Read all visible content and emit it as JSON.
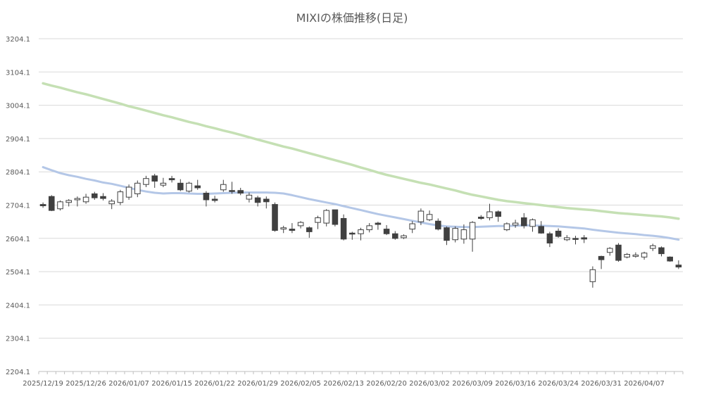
{
  "chart_data": {
    "type": "candlestick",
    "title": "MIXIの株価推移(日足)",
    "ylim": [
      2204.1,
      3204.1
    ],
    "y_ticks": [
      "3204.1",
      "3104.1",
      "3004.1",
      "2904.1",
      "2804.1",
      "2704.1",
      "2604.1",
      "2504.1",
      "2404.1",
      "2304.1",
      "2204.1"
    ],
    "x_tick_labels": [
      "2025/12/19",
      "2025/12/26",
      "2026/01/07",
      "2026/01/15",
      "2026/01/22",
      "2026/01/29",
      "2026/02/05",
      "2026/02/13",
      "2026/02/20",
      "2026/03/02",
      "2026/03/09",
      "2026/03/16",
      "2026/03/24",
      "2026/03/31",
      "2026/04/07"
    ],
    "grid": true,
    "colors": {
      "up_fill": "#ffffff",
      "down_fill": "#404040",
      "candle_stroke": "#404040",
      "ma_short": "#b4c7e7",
      "ma_long": "#c5e0b4",
      "grid": "#d9d9d9",
      "axis_text": "#595959"
    },
    "series": [
      {
        "values": [
          [
            2706,
            2712,
            2696,
            2702
          ],
          [
            2730,
            2734,
            2686,
            2688
          ],
          [
            2693,
            2718,
            2688,
            2714
          ],
          [
            2712,
            2722,
            2700,
            2718
          ],
          [
            2720,
            2730,
            2700,
            2724
          ],
          [
            2714,
            2738,
            2708,
            2728
          ],
          [
            2738,
            2744,
            2720,
            2726
          ],
          [
            2730,
            2740,
            2718,
            2724
          ],
          [
            2708,
            2722,
            2692,
            2716
          ],
          [
            2712,
            2750,
            2704,
            2744
          ],
          [
            2728,
            2766,
            2720,
            2758
          ],
          [
            2738,
            2778,
            2728,
            2770
          ],
          [
            2766,
            2792,
            2758,
            2784
          ],
          [
            2792,
            2798,
            2756,
            2776
          ],
          [
            2764,
            2786,
            2758,
            2770
          ],
          [
            2784,
            2792,
            2772,
            2780
          ],
          [
            2770,
            2782,
            2746,
            2750
          ],
          [
            2746,
            2774,
            2742,
            2770
          ],
          [
            2762,
            2780,
            2750,
            2756
          ],
          [
            2740,
            2746,
            2700,
            2720
          ],
          [
            2722,
            2732,
            2712,
            2718
          ],
          [
            2750,
            2780,
            2744,
            2766
          ],
          [
            2748,
            2774,
            2738,
            2746
          ],
          [
            2748,
            2756,
            2734,
            2740
          ],
          [
            2722,
            2742,
            2712,
            2734
          ],
          [
            2726,
            2732,
            2700,
            2712
          ],
          [
            2722,
            2730,
            2694,
            2714
          ],
          [
            2706,
            2712,
            2624,
            2628
          ],
          [
            2632,
            2642,
            2620,
            2636
          ],
          [
            2632,
            2650,
            2620,
            2628
          ],
          [
            2642,
            2656,
            2634,
            2652
          ],
          [
            2636,
            2640,
            2606,
            2624
          ],
          [
            2652,
            2672,
            2632,
            2666
          ],
          [
            2650,
            2692,
            2640,
            2688
          ],
          [
            2690,
            2690,
            2640,
            2646
          ],
          [
            2664,
            2676,
            2598,
            2602
          ],
          [
            2620,
            2624,
            2600,
            2618
          ],
          [
            2618,
            2636,
            2598,
            2630
          ],
          [
            2630,
            2650,
            2622,
            2642
          ],
          [
            2650,
            2654,
            2630,
            2646
          ],
          [
            2632,
            2644,
            2614,
            2618
          ],
          [
            2618,
            2626,
            2600,
            2604
          ],
          [
            2606,
            2616,
            2602,
            2612
          ],
          [
            2632,
            2656,
            2620,
            2648
          ],
          [
            2654,
            2694,
            2644,
            2686
          ],
          [
            2660,
            2688,
            2656,
            2676
          ],
          [
            2656,
            2664,
            2628,
            2632
          ],
          [
            2636,
            2640,
            2584,
            2598
          ],
          [
            2600,
            2640,
            2592,
            2634
          ],
          [
            2602,
            2646,
            2588,
            2630
          ],
          [
            2602,
            2656,
            2564,
            2652
          ],
          [
            2668,
            2674,
            2660,
            2664
          ],
          [
            2666,
            2708,
            2658,
            2684
          ],
          [
            2684,
            2688,
            2654,
            2670
          ],
          [
            2630,
            2652,
            2626,
            2648
          ],
          [
            2644,
            2660,
            2636,
            2650
          ],
          [
            2666,
            2680,
            2634,
            2642
          ],
          [
            2640,
            2664,
            2624,
            2660
          ],
          [
            2640,
            2656,
            2618,
            2620
          ],
          [
            2618,
            2624,
            2578,
            2590
          ],
          [
            2626,
            2634,
            2606,
            2610
          ],
          [
            2600,
            2614,
            2596,
            2606
          ],
          [
            2604,
            2612,
            2586,
            2602
          ],
          [
            2606,
            2614,
            2590,
            2602
          ],
          [
            2474,
            2520,
            2456,
            2510
          ],
          [
            2550,
            2552,
            2512,
            2540
          ],
          [
            2562,
            2578,
            2552,
            2574
          ],
          [
            2584,
            2590,
            2534,
            2538
          ],
          [
            2548,
            2560,
            2544,
            2556
          ],
          [
            2550,
            2562,
            2546,
            2554
          ],
          [
            2548,
            2564,
            2540,
            2560
          ],
          [
            2574,
            2588,
            2566,
            2582
          ],
          [
            2576,
            2580,
            2550,
            2558
          ],
          [
            2548,
            2550,
            2534,
            2536
          ],
          [
            2524,
            2538,
            2512,
            2518
          ]
        ]
      },
      {
        "name": "",
        "values": [
          2818,
          2809,
          2800,
          2794,
          2789,
          2783,
          2778,
          2772,
          2768,
          2762,
          2756,
          2750,
          2745,
          2741,
          2739,
          2740,
          2740,
          2739,
          2738,
          2738,
          2739,
          2740,
          2741,
          2742,
          2742,
          2742,
          2742,
          2741,
          2739,
          2734,
          2728,
          2722,
          2717,
          2712,
          2707,
          2701,
          2695,
          2689,
          2683,
          2677,
          2672,
          2667,
          2662,
          2657,
          2652,
          2647,
          2643,
          2640,
          2639,
          2638,
          2638,
          2639,
          2640,
          2641,
          2641,
          2642,
          2643,
          2643,
          2642,
          2641,
          2640,
          2638,
          2636,
          2634,
          2630,
          2627,
          2624,
          2621,
          2619,
          2617,
          2614,
          2612,
          2609,
          2605,
          2600
        ]
      },
      {
        "name": "",
        "values": [
          3070,
          3063,
          3057,
          3050,
          3043,
          3037,
          3030,
          3023,
          3016,
          3009,
          3001,
          2995,
          2988,
          2981,
          2974,
          2968,
          2961,
          2954,
          2948,
          2941,
          2935,
          2928,
          2922,
          2915,
          2908,
          2901,
          2894,
          2887,
          2880,
          2874,
          2867,
          2860,
          2853,
          2846,
          2839,
          2832,
          2825,
          2817,
          2810,
          2802,
          2795,
          2789,
          2783,
          2777,
          2771,
          2766,
          2760,
          2754,
          2748,
          2741,
          2735,
          2730,
          2725,
          2720,
          2716,
          2713,
          2710,
          2707,
          2704,
          2701,
          2698,
          2695,
          2693,
          2691,
          2689,
          2686,
          2683,
          2680,
          2678,
          2676,
          2674,
          2672,
          2670,
          2667,
          2663
        ]
      }
    ]
  }
}
